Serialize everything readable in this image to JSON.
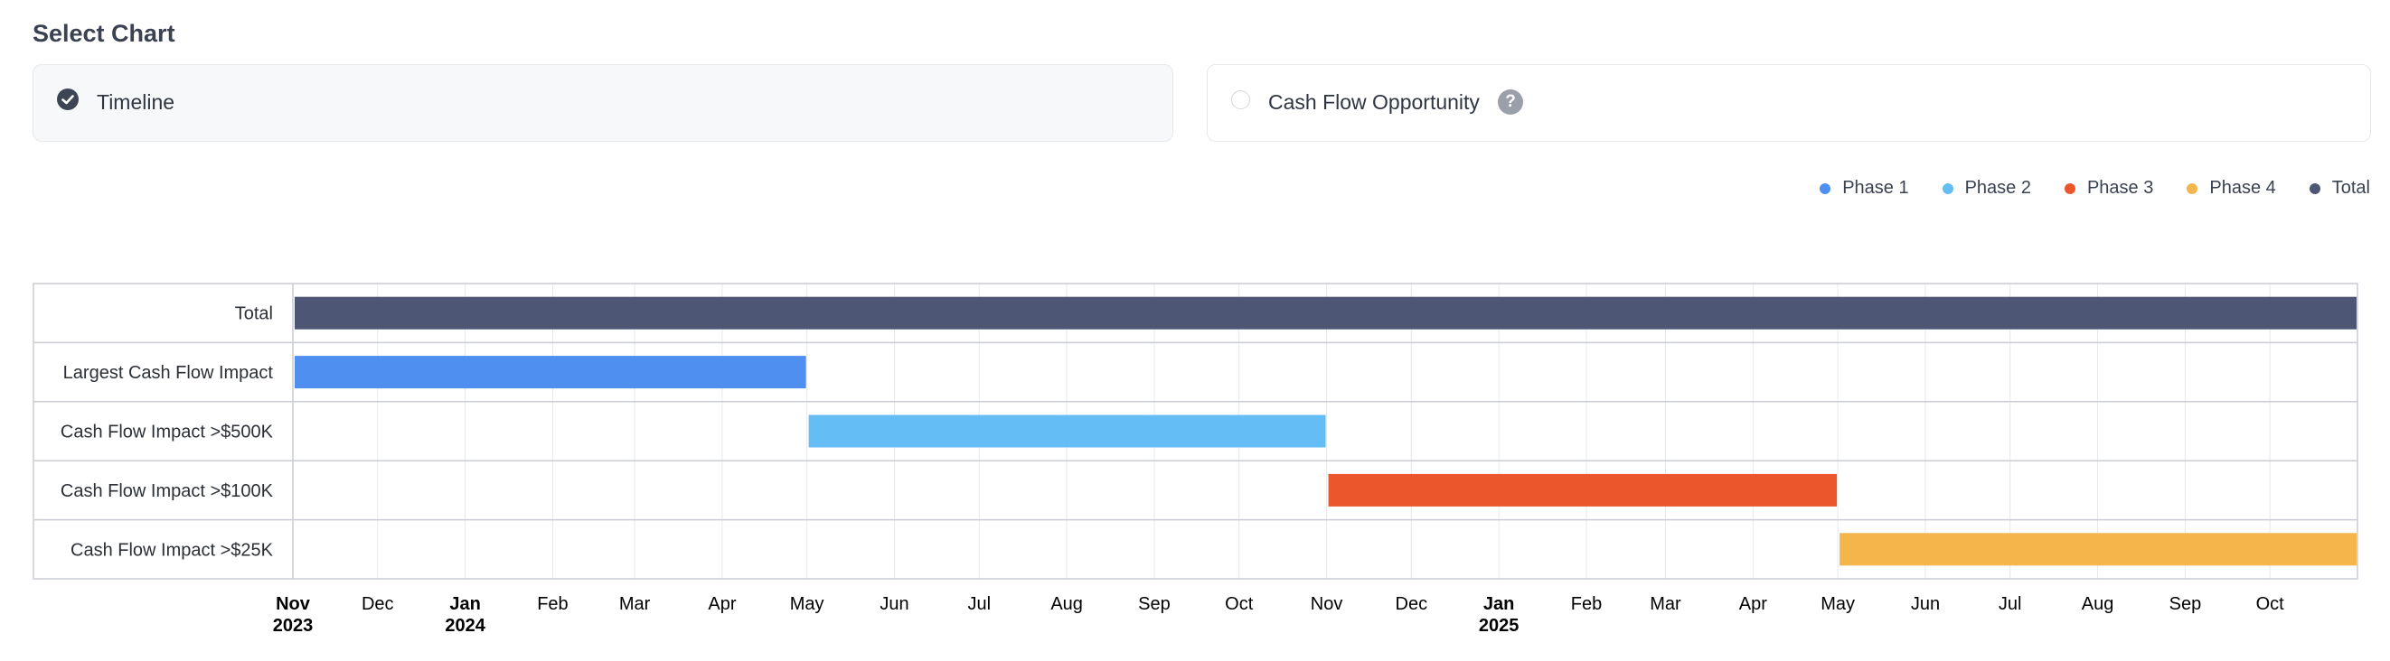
{
  "page": {
    "title": "Select Chart"
  },
  "chart_options": [
    {
      "label": "Timeline",
      "selected": true,
      "icon": "check-circle-icon"
    },
    {
      "label": "Cash Flow Opportunity",
      "selected": false,
      "icon": "radio-icon",
      "help_icon": "question-icon",
      "help_symbol": "?"
    }
  ],
  "legend": [
    {
      "label": "Phase 1",
      "color": "#4f8ff0"
    },
    {
      "label": "Phase 2",
      "color": "#64bdf4"
    },
    {
      "label": "Phase 3",
      "color": "#ec562d"
    },
    {
      "label": "Phase 4",
      "color": "#f4b64a"
    },
    {
      "label": "Total",
      "color": "#4d5675"
    }
  ],
  "chart_data": {
    "type": "gantt",
    "x_range": [
      "2023-11-01",
      "2025-11-01"
    ],
    "x_ticks": [
      {
        "month": "Nov",
        "year": "2023",
        "date": "2023-11-01"
      },
      {
        "month": "Dec",
        "date": "2023-12-01"
      },
      {
        "month": "Jan",
        "year": "2024",
        "date": "2024-01-01"
      },
      {
        "month": "Feb",
        "date": "2024-02-01"
      },
      {
        "month": "Mar",
        "date": "2024-03-01"
      },
      {
        "month": "Apr",
        "date": "2024-04-01"
      },
      {
        "month": "May",
        "date": "2024-05-01"
      },
      {
        "month": "Jun",
        "date": "2024-06-01"
      },
      {
        "month": "Jul",
        "date": "2024-07-01"
      },
      {
        "month": "Aug",
        "date": "2024-08-01"
      },
      {
        "month": "Sep",
        "date": "2024-09-01"
      },
      {
        "month": "Oct",
        "date": "2024-10-01"
      },
      {
        "month": "Nov",
        "date": "2024-11-01"
      },
      {
        "month": "Dec",
        "date": "2024-12-01"
      },
      {
        "month": "Jan",
        "year": "2025",
        "date": "2025-01-01"
      },
      {
        "month": "Feb",
        "date": "2025-02-01"
      },
      {
        "month": "Mar",
        "date": "2025-03-01"
      },
      {
        "month": "Apr",
        "date": "2025-04-01"
      },
      {
        "month": "May",
        "date": "2025-05-01"
      },
      {
        "month": "Jun",
        "date": "2025-06-01"
      },
      {
        "month": "Jul",
        "date": "2025-07-01"
      },
      {
        "month": "Aug",
        "date": "2025-08-01"
      },
      {
        "month": "Sep",
        "date": "2025-09-01"
      },
      {
        "month": "Oct",
        "date": "2025-10-01"
      }
    ],
    "rows": [
      {
        "label": "Total",
        "start": "2023-11-01",
        "end": "2025-11-01",
        "series": "Total"
      },
      {
        "label": "Largest Cash Flow Impact",
        "start": "2023-11-01",
        "end": "2024-05-01",
        "series": "Phase 1"
      },
      {
        "label": "Cash Flow Impact >$500K",
        "start": "2024-05-01",
        "end": "2024-11-01",
        "series": "Phase 2"
      },
      {
        "label": "Cash Flow Impact >$100K",
        "start": "2024-11-01",
        "end": "2025-05-01",
        "series": "Phase 3"
      },
      {
        "label": "Cash Flow Impact >$25K",
        "start": "2025-05-01",
        "end": "2025-11-01",
        "series": "Phase 4"
      }
    ]
  }
}
